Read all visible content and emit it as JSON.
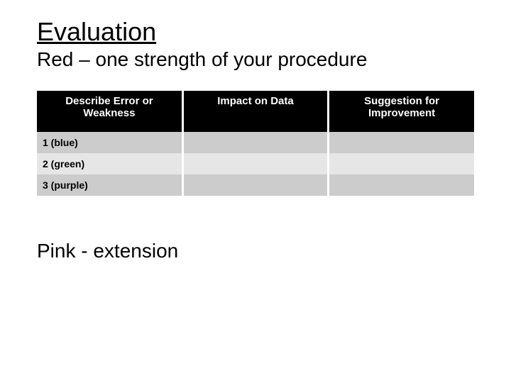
{
  "title": "Evaluation",
  "subtitle": "Red – one strength of your procedure",
  "table": {
    "type": "table",
    "columns": [
      {
        "label": "Describe Error or Weakness",
        "align": "center"
      },
      {
        "label": "Impact on Data",
        "align": "center"
      },
      {
        "label": "Suggestion for Improvement",
        "align": "center"
      }
    ],
    "header_bg": "#000000",
    "header_text_color": "#ffffff",
    "header_fontsize": 15,
    "row_alt_colors": [
      "#cccccc",
      "#e6e6e6"
    ],
    "cell_fontsize": 14,
    "border_color": "#ffffff",
    "rows": [
      {
        "cells": [
          "1 (blue)",
          "",
          ""
        ],
        "bg": "#cccccc"
      },
      {
        "cells": [
          "2 (green)",
          "",
          ""
        ],
        "bg": "#e6e6e6"
      },
      {
        "cells": [
          "3 (purple)",
          "",
          ""
        ],
        "bg": "#cccccc"
      }
    ]
  },
  "footer": "Pink - extension",
  "background_color": "#ffffff",
  "text_color": "#000000",
  "title_fontsize": 36,
  "subtitle_fontsize": 28,
  "footer_fontsize": 28
}
